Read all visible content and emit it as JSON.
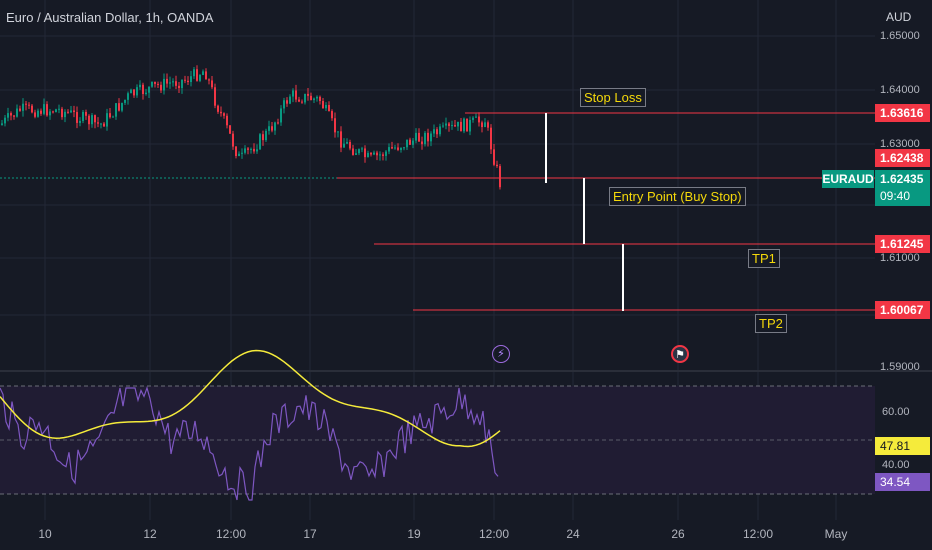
{
  "header": {
    "title": "Euro / Australian Dollar, 1h, OANDA",
    "currency": "AUD"
  },
  "price_axis": {
    "ticks": [
      "1.65000",
      "1.64000",
      "1.63000",
      "1.61000",
      "1.59000"
    ]
  },
  "price_tags": {
    "stop_loss": "1.63616",
    "current_red": "1.62438",
    "symbol": "EURAUD",
    "last_price": "1.62435",
    "countdown": "09:40",
    "tp1": "1.61245",
    "tp2": "1.60067"
  },
  "annotations": {
    "stop_loss": "Stop Loss",
    "entry": "Entry Point (Buy Stop)",
    "tp1": "TP1",
    "tp2": "TP2"
  },
  "rsi": {
    "ticks": [
      "60.00",
      "40.00"
    ],
    "signal_value": "47.81",
    "rsi_value": "34.54"
  },
  "time_axis": {
    "labels": [
      "10",
      "12",
      "12:00",
      "17",
      "19",
      "12:00",
      "24",
      "26",
      "12:00",
      "May"
    ]
  },
  "icons": [
    "lightning-event-icon",
    "flag-event-icon"
  ],
  "colors": {
    "background": "#161a25",
    "up": "#089981",
    "down": "#f23645",
    "annotation_text": "#f5d90a",
    "rsi_line": "#7e57c2",
    "rsi_signal": "#f5eb3b",
    "level_line": "#f23645"
  }
}
